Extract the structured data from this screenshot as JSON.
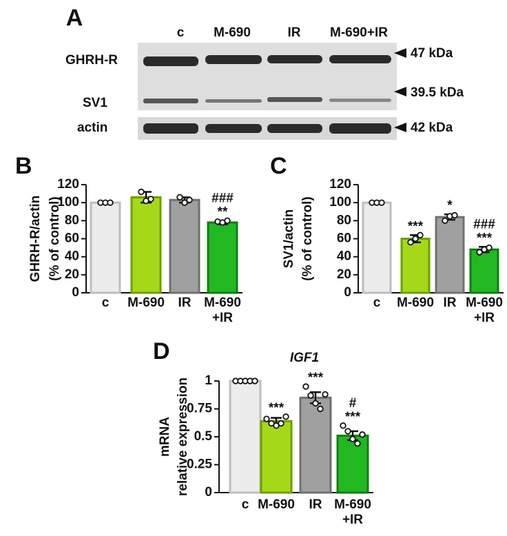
{
  "blot": {
    "panel": "A",
    "lanes": [
      "c",
      "M-690",
      "IR",
      "M-690+IR"
    ],
    "bands": [
      "GHRH-R",
      "SV1",
      "actin"
    ],
    "sizes": [
      "47 kDa",
      "39.5 kDa",
      "42 kDa"
    ]
  },
  "chart_data": [
    {
      "type": "bar",
      "panel": "B",
      "ylabel": [
        "GHRH-R/actin",
        "(% of control)"
      ],
      "categories": [
        [
          "c"
        ],
        [
          "M-690"
        ],
        [
          "IR"
        ],
        [
          "M-690",
          "+IR"
        ]
      ],
      "values": [
        100,
        106,
        103,
        78
      ],
      "errors": [
        0,
        6,
        3,
        2
      ],
      "points": [
        [
          100,
          100,
          100
        ],
        [
          112,
          102,
          104
        ],
        [
          106,
          100,
          103
        ],
        [
          79,
          78,
          80
        ]
      ],
      "annotations": [
        null,
        null,
        null,
        [
          "###",
          "**"
        ]
      ],
      "colors": [
        "#ececec",
        "#a6d81a",
        "#a0a0a0",
        "#22b822"
      ],
      "edge_colors": [
        "#bdbdbd",
        "#6aa000",
        "#707070",
        "#0e7e0e"
      ],
      "ylim": [
        0,
        120
      ],
      "yticks": [
        0,
        20,
        40,
        60,
        80,
        100,
        120
      ]
    },
    {
      "type": "bar",
      "panel": "C",
      "ylabel": [
        "SV1/actin",
        "(% of control)"
      ],
      "categories": [
        [
          "c"
        ],
        [
          "M-690"
        ],
        [
          "IR"
        ],
        [
          "M-690",
          "+IR"
        ]
      ],
      "values": [
        100,
        60,
        84,
        48
      ],
      "errors": [
        0,
        4,
        3,
        3
      ],
      "points": [
        [
          100,
          100,
          100
        ],
        [
          56,
          60,
          64
        ],
        [
          80,
          85,
          86
        ],
        [
          45,
          48,
          50
        ]
      ],
      "annotations": [
        null,
        [
          "***"
        ],
        [
          "*"
        ],
        [
          "###",
          "***"
        ]
      ],
      "colors": [
        "#ececec",
        "#a6d81a",
        "#a0a0a0",
        "#22b822"
      ],
      "edge_colors": [
        "#bdbdbd",
        "#6aa000",
        "#707070",
        "#0e7e0e"
      ],
      "ylim": [
        0,
        120
      ],
      "yticks": [
        0,
        20,
        40,
        60,
        80,
        100,
        120
      ]
    },
    {
      "type": "bar",
      "panel": "D",
      "title": "IGF1",
      "ylabel": [
        "mRNA",
        "relative expression"
      ],
      "categories": [
        [
          "c"
        ],
        [
          "M-690"
        ],
        [
          "IR"
        ],
        [
          "M-690",
          "+IR"
        ]
      ],
      "values": [
        1,
        0.64,
        0.85,
        0.51
      ],
      "errors": [
        0,
        0.03,
        0.05,
        0.04
      ],
      "points": [
        [
          1,
          1,
          1,
          1,
          1
        ],
        [
          0.66,
          0.62,
          0.6,
          0.62,
          0.68
        ],
        [
          0.95,
          0.87,
          0.8,
          0.75,
          0.88
        ],
        [
          0.6,
          0.55,
          0.48,
          0.44,
          0.52
        ]
      ],
      "annotations": [
        null,
        [
          "***"
        ],
        [
          "***"
        ],
        [
          "#",
          "***"
        ]
      ],
      "colors": [
        "#ececec",
        "#a6d81a",
        "#a0a0a0",
        "#22b822"
      ],
      "edge_colors": [
        "#bdbdbd",
        "#6aa000",
        "#707070",
        "#0e7e0e"
      ],
      "ylim": [
        0,
        1
      ],
      "yticks": [
        0,
        0.25,
        0.5,
        0.75,
        1
      ]
    }
  ]
}
